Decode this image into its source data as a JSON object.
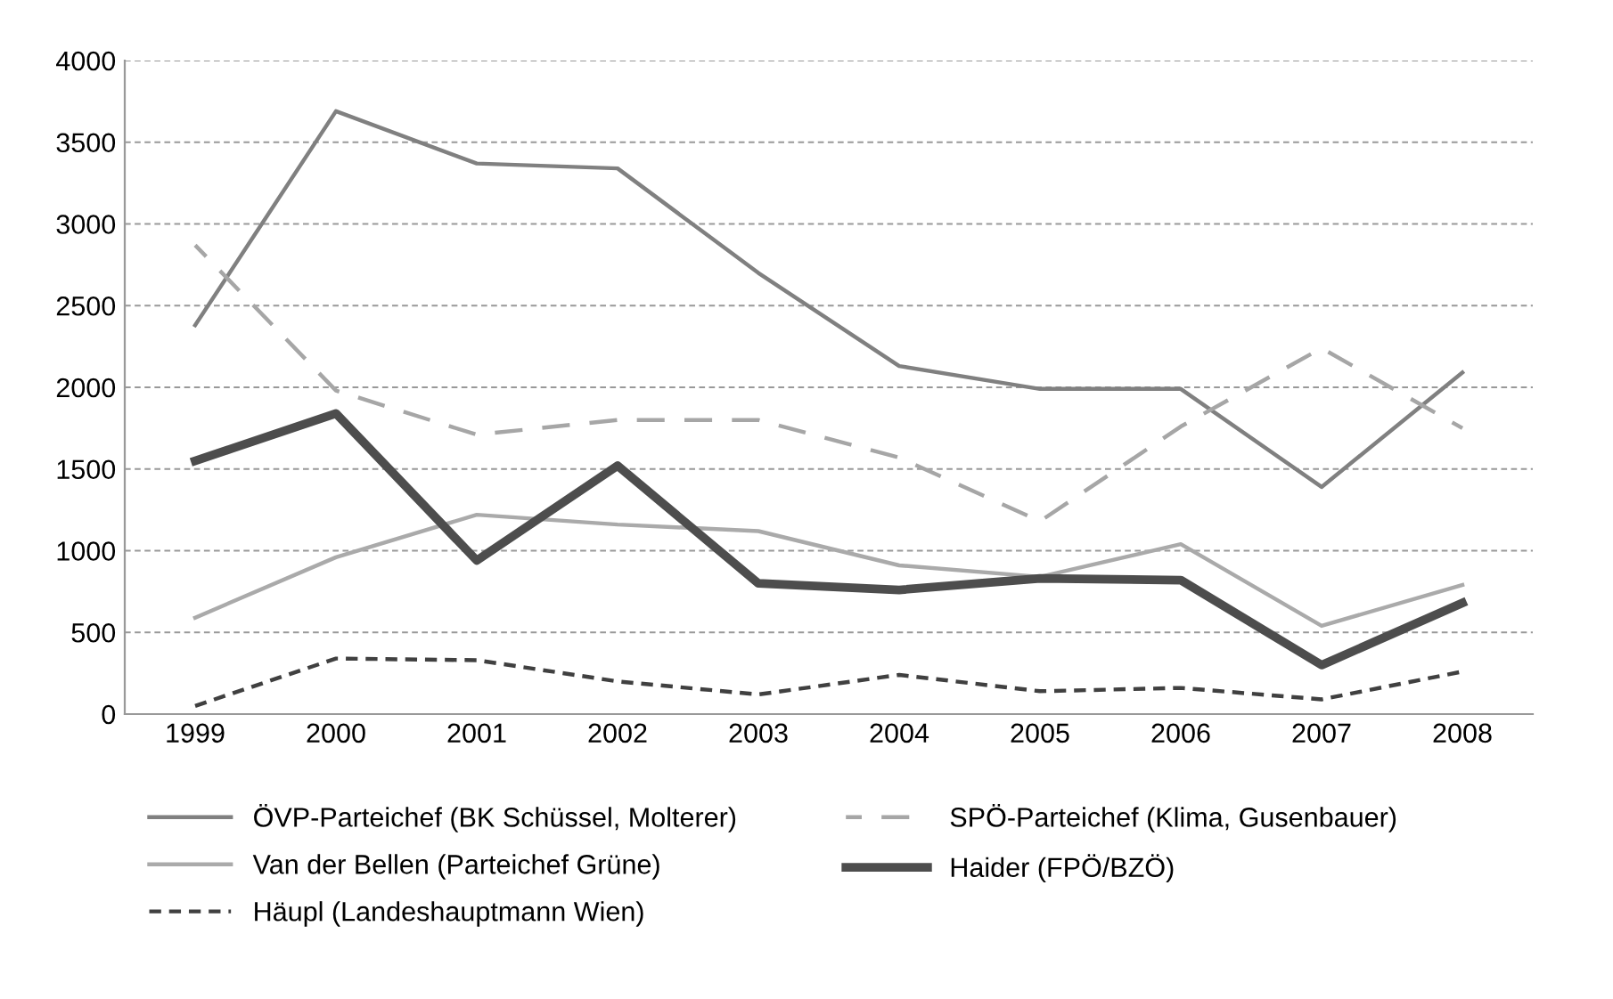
{
  "chart_data": {
    "type": "line",
    "categories": [
      "1999",
      "2000",
      "2001",
      "2002",
      "2003",
      "2004",
      "2005",
      "2006",
      "2007",
      "2008"
    ],
    "series": [
      {
        "name": "ÖVP-Parteichef (BK Schüssel, Molterer)",
        "color": "#808080",
        "line_style": "solid",
        "values": [
          2380,
          3690,
          3370,
          3340,
          2700,
          2130,
          1990,
          1990,
          1390,
          2090
        ]
      },
      {
        "name": "SPÖ-Parteichef (Klima, Gusenbauer)",
        "color": "#a6a6a6",
        "line_style": "dashed",
        "values": [
          2870,
          1980,
          1710,
          1800,
          1800,
          1570,
          1180,
          1760,
          2240,
          1750
        ]
      },
      {
        "name": "Van der Bellen (Parteichef Grüne)",
        "color": "#aaaaaa",
        "line_style": "solid",
        "values": [
          590,
          960,
          1220,
          1160,
          1120,
          910,
          840,
          1040,
          540,
          790
        ]
      },
      {
        "name": "Haider (FPÖ/BZÖ)",
        "color": "#4d4d4d",
        "line_style": "solid",
        "values": [
          1550,
          1840,
          940,
          1520,
          800,
          760,
          830,
          820,
          300,
          680
        ]
      },
      {
        "name": "Häupl (Landeshauptmann Wien)",
        "color": "#404040",
        "line_style": "dotted",
        "values": [
          50,
          340,
          330,
          200,
          120,
          240,
          140,
          160,
          90,
          260
        ]
      }
    ],
    "ylim": [
      0,
      4000
    ],
    "yticks": [
      0,
      500,
      1000,
      1500,
      2000,
      2500,
      3000,
      3500,
      4000
    ],
    "grid": "y",
    "legend": "bottom",
    "marker": "none"
  }
}
